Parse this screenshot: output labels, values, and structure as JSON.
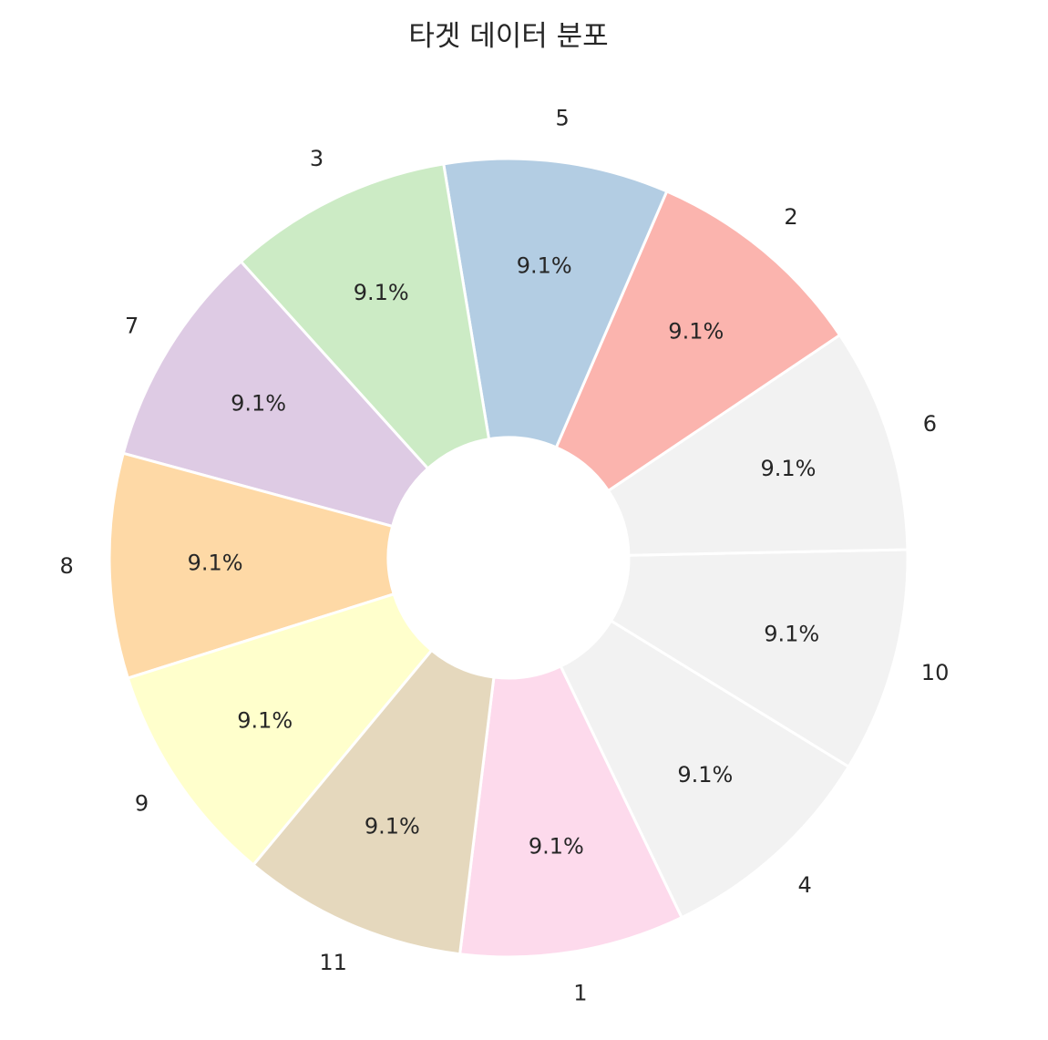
{
  "chart_data": {
    "type": "pie",
    "title": "타겟 데이터 분포",
    "slices": [
      {
        "label": "1",
        "value": 1,
        "pct_label": "9.1%",
        "color": "#fddaec"
      },
      {
        "label": "4",
        "value": 1,
        "pct_label": "9.1%",
        "color": "#f2f2f2"
      },
      {
        "label": "10",
        "value": 1,
        "pct_label": "9.1%",
        "color": "#f2f2f2"
      },
      {
        "label": "6",
        "value": 1,
        "pct_label": "9.1%",
        "color": "#f2f2f2"
      },
      {
        "label": "2",
        "value": 1,
        "pct_label": "9.1%",
        "color": "#fbb4ae"
      },
      {
        "label": "5",
        "value": 1,
        "pct_label": "9.1%",
        "color": "#b3cde3"
      },
      {
        "label": "3",
        "value": 1,
        "pct_label": "9.1%",
        "color": "#ccebc5"
      },
      {
        "label": "7",
        "value": 1,
        "pct_label": "9.1%",
        "color": "#decbe4"
      },
      {
        "label": "8",
        "value": 1,
        "pct_label": "9.1%",
        "color": "#fed9a6"
      },
      {
        "label": "9",
        "value": 1,
        "pct_label": "9.1%",
        "color": "#ffffcc"
      },
      {
        "label": "11",
        "value": 1,
        "pct_label": "9.1%",
        "color": "#e5d8bd"
      }
    ],
    "donut": true,
    "edge_color": "#ffffff"
  }
}
